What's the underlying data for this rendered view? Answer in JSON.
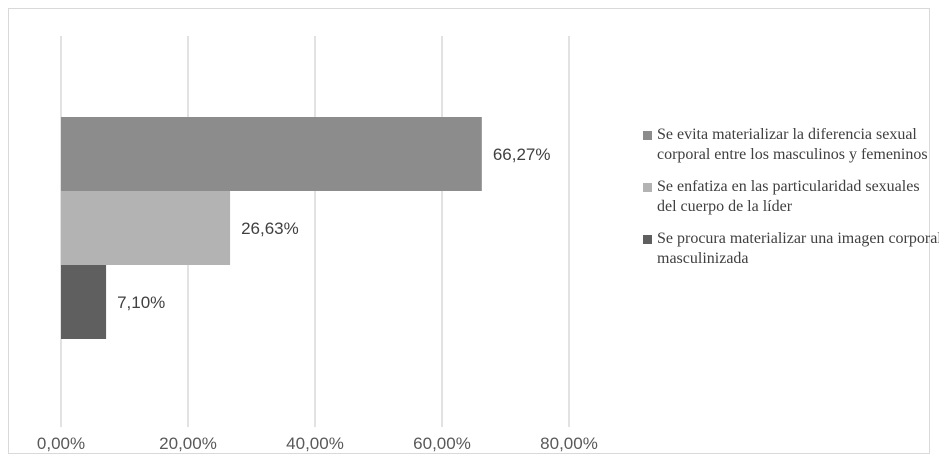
{
  "chart_data": {
    "type": "bar",
    "orientation": "horizontal",
    "xlim": [
      0,
      80
    ],
    "x_ticks": [
      "0,00%",
      "20,00%",
      "40,00%",
      "60,00%",
      "80,00%"
    ],
    "x_tick_values": [
      0,
      20,
      40,
      60,
      80
    ],
    "grid": true,
    "legend_position": "right",
    "series": [
      {
        "name": "Se evita materializar la diferencia sexual corporal entre los masculinos y femeninos",
        "value": 66.27,
        "label": "66,27%",
        "color": "#8c8c8c"
      },
      {
        "name": "Se enfatiza en las particularidad sexuales del cuerpo de la líder",
        "value": 26.63,
        "label": "26,63%",
        "color": "#b3b3b3"
      },
      {
        "name": "Se procura materializar una imagen corporal masculinizada",
        "value": 7.1,
        "label": "7,10%",
        "color": "#5f5f5f"
      }
    ]
  }
}
